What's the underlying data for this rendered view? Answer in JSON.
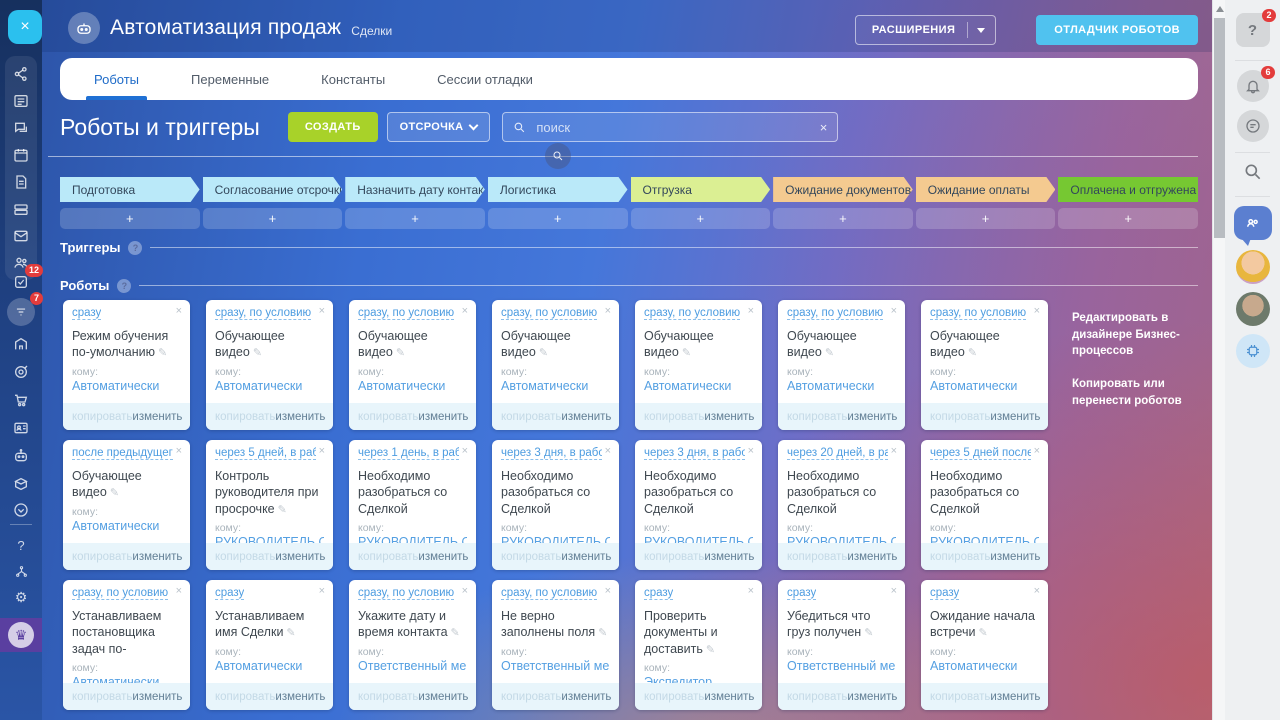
{
  "header": {
    "title": "Автоматизация продаж",
    "subtitle": "Сделки",
    "extensions": "РАСШИРЕНИЯ",
    "debugger": "ОТЛАДЧИК РОБОТОВ",
    "close": "×"
  },
  "tabs": [
    "Роботы",
    "Переменные",
    "Константы",
    "Сессии отладки"
  ],
  "active_tab": "Роботы",
  "toolbar": {
    "heading": "Роботы и триггеры",
    "create": "СОЗДАТЬ",
    "delay": "ОТСРОЧКА",
    "search_placeholder": "поиск",
    "search_value": "",
    "clear": "×"
  },
  "stages": {
    "add_label": "+",
    "items": [
      {
        "label": "Подготовка",
        "color": "#bae9f9"
      },
      {
        "label": "Согласование отсрочки",
        "color": "#bae9f9"
      },
      {
        "label": "Назначить дату контак...",
        "color": "#bae9f9"
      },
      {
        "label": "Логистика",
        "color": "#bae9f9"
      },
      {
        "label": "Отгрузка",
        "color": "#dbef93"
      },
      {
        "label": "Ожидание документов",
        "color": "#f4ca90"
      },
      {
        "label": "Ожидание оплаты",
        "color": "#f4ca90"
      },
      {
        "label": "Оплачена и отгружена",
        "color": "#76c832"
      }
    ]
  },
  "sections": {
    "triggers": "Триггеры",
    "robots": "Роботы"
  },
  "cards": {
    "to_label": "кому:",
    "copy_label": "копировать",
    "edit_label": "изменить",
    "rows": [
      [
        {
          "when": "сразу",
          "title": "Режим обучения по-умолчанию",
          "pencil": true,
          "to": "Автоматически"
        },
        {
          "when": "сразу, по условию",
          "title": "Обучающее видео",
          "pencil": true,
          "to": "Автоматически"
        },
        {
          "when": "сразу, по условию",
          "title": "Обучающее видео",
          "pencil": true,
          "to": "Автоматически"
        },
        {
          "when": "сразу, по условию",
          "title": "Обучающее видео",
          "pencil": true,
          "to": "Автоматически"
        },
        {
          "when": "сразу, по условию",
          "title": "Обучающее видео",
          "pencil": true,
          "to": "Автоматически"
        },
        {
          "when": "сразу, по условию",
          "title": "Обучающее видео",
          "pencil": true,
          "to": "Автоматически"
        },
        {
          "when": "сразу, по условию",
          "title": "Обучающее видео",
          "pencil": true,
          "to": "Автоматически"
        }
      ],
      [
        {
          "when": "после предыдущего, п...",
          "title": "Обучающее видео",
          "pencil": true,
          "to": "Автоматически"
        },
        {
          "when": "через 5 дней, в рабоч...",
          "title": "Контроль руководителя при просрочке",
          "pencil": true,
          "to": "РУКОВОДИТЕЛЬ ОТ..."
        },
        {
          "when": "через 1 день, в рабоч...",
          "title": "Необходимо разобраться со Сделкой",
          "pencil": false,
          "to": "РУКОВОДИТЕЛЬ ОТ..."
        },
        {
          "when": "через 3 дня, в рабоче...",
          "title": "Необходимо разобраться со Сделкой",
          "pencil": false,
          "to": "РУКОВОДИТЕЛЬ ОТ..."
        },
        {
          "when": "через 3 дня, в рабоче...",
          "title": "Необходимо разобраться со Сделкой",
          "pencil": false,
          "to": "РУКОВОДИТЕЛЬ ОТ..."
        },
        {
          "when": "через 20 дней, в рабо...",
          "title": "Необходимо разобраться со Сделкой",
          "pencil": false,
          "to": "РУКОВОДИТЕЛЬ ОТ..."
        },
        {
          "when": "через 5 дней после Д...",
          "title": "Необходимо разобраться со Сделкой",
          "pencil": false,
          "to": "РУКОВОДИТЕЛЬ ОТ..."
        }
      ],
      [
        {
          "when": "сразу, по условию",
          "title": "Устанавливаем постановщика задач по-",
          "pencil": false,
          "to": "Автоматически"
        },
        {
          "when": "сразу",
          "title": "Устанавливаем имя Сделки",
          "pencil": true,
          "to": "Автоматически"
        },
        {
          "when": "сразу, по условию",
          "title": "Укажите дату и время контакта",
          "pencil": true,
          "to": "Ответственный мен..."
        },
        {
          "when": "сразу, по условию",
          "title": "Не верно заполнены поля",
          "pencil": true,
          "to": "Ответственный мен..."
        },
        {
          "when": "сразу",
          "title": "Проверить документы и доставить",
          "pencil": true,
          "to": "Экспедитор"
        },
        {
          "when": "сразу",
          "title": "Убедиться что груз получен",
          "pencil": true,
          "to": "Ответственный мен..."
        },
        {
          "when": "сразу",
          "title": "Ожидание начала встречи",
          "pencil": true,
          "to": "Автоматически"
        }
      ]
    ]
  },
  "side_links": [
    "Редактировать в дизайнере Бизнес-процессов",
    "Копировать или перенести роботов"
  ],
  "badges": {
    "tasks": "12",
    "crm": "7",
    "help": "2",
    "notifications": "6"
  }
}
